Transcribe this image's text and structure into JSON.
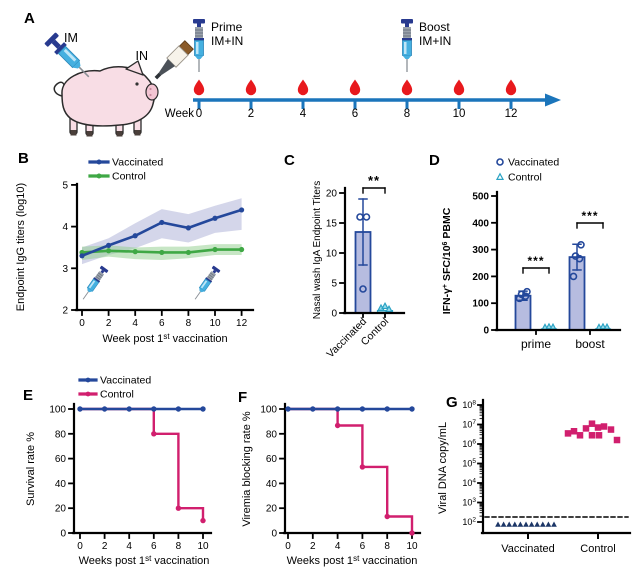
{
  "panels": {
    "a": "A",
    "b": "B",
    "c": "C",
    "d": "D",
    "e": "E",
    "f": "F",
    "g": "G"
  },
  "colors": {
    "vaccinated_blue": "#24489b",
    "control_green": "#3fa845",
    "control_magenta": "#d11f6e",
    "control_cyan_fill": "#9adceb",
    "control_cyan_stroke": "#2ba3c4",
    "bar_fill": "#b6bce0",
    "navy_points": "#1c3667",
    "band_blue": "#a9aed6",
    "band_green": "#8fce8c",
    "drop_red": "#e8191d",
    "timeline_blue": "#1b75bb",
    "axis_black": "#000000"
  },
  "panelA": {
    "label_im": "IM",
    "label_in": "IN",
    "week_word": "Week",
    "weeks": [
      0,
      2,
      4,
      6,
      8,
      10,
      12
    ],
    "prime_line1": "Prime",
    "prime_line2": "IM+IN",
    "boost_line1": "Boost",
    "boost_line2": "IM+IN"
  },
  "chart_data": {
    "B": {
      "type": "line",
      "ylabel": "Endpoint IgG titers (log10)",
      "xlabel_parts": [
        [
          "Week post 1",
          false
        ],
        [
          "st",
          true
        ],
        [
          " vaccination",
          false
        ]
      ],
      "xticks": [
        0,
        2,
        4,
        6,
        8,
        10,
        12
      ],
      "yticks": [
        2,
        3,
        4,
        5
      ],
      "ylim": [
        2,
        5
      ],
      "x": [
        0,
        2,
        4,
        6,
        8,
        10,
        12
      ],
      "series": [
        {
          "name": "Vaccinated",
          "color": "#24489b",
          "band_color": "#a9aed6",
          "values": [
            3.3,
            3.55,
            3.78,
            4.1,
            3.97,
            4.2,
            4.4
          ],
          "band_upper": [
            3.5,
            3.72,
            4.08,
            4.42,
            4.3,
            4.5,
            4.68
          ],
          "band_lower": [
            3.1,
            3.32,
            3.48,
            3.72,
            3.62,
            3.85,
            3.92
          ]
        },
        {
          "name": "Control",
          "color": "#3fa845",
          "band_color": "#8fce8c",
          "values": [
            3.38,
            3.42,
            3.4,
            3.38,
            3.38,
            3.45,
            3.45
          ],
          "band_upper": [
            3.52,
            3.55,
            3.5,
            3.52,
            3.52,
            3.58,
            3.58
          ],
          "band_lower": [
            3.2,
            3.28,
            3.22,
            3.2,
            3.24,
            3.32,
            3.32
          ]
        }
      ],
      "syringe_weeks": [
        0,
        8
      ]
    },
    "C": {
      "type": "bar",
      "ylabel": "Nasal wash IgA Endpoint Titers",
      "categories": [
        "Vaccinated",
        "Control"
      ],
      "values": [
        13.5,
        0.4
      ],
      "error_high": [
        19,
        0.9
      ],
      "error_low": [
        8,
        0
      ],
      "points": [
        [
          16,
          16,
          4
        ],
        [
          0.5,
          0.8,
          0.3
        ]
      ],
      "yticks": [
        0,
        5,
        10,
        15,
        20
      ],
      "ylim": [
        0,
        20
      ],
      "significance": "**"
    },
    "D": {
      "type": "grouped_bar",
      "ylabel_parts": [
        [
          "IFN-γ",
          false
        ],
        [
          "+",
          true
        ],
        [
          " SFC/10",
          false
        ],
        [
          "6",
          true
        ],
        [
          " PBMC",
          false
        ]
      ],
      "legend": [
        {
          "name": "Vaccinated",
          "marker": "circle"
        },
        {
          "name": "Control",
          "marker": "triangle"
        }
      ],
      "groups": [
        "prime",
        "boost"
      ],
      "vaccinated": {
        "values": [
          128,
          272
        ],
        "error_high": [
          145,
          320
        ],
        "points": [
          [
            118,
            126,
            133,
            143
          ],
          [
            200,
            266,
            276,
            318
          ]
        ]
      },
      "control": {
        "values": [
          4,
          4
        ],
        "points": [
          [
            3,
            5,
            4
          ],
          [
            3,
            5,
            4
          ]
        ]
      },
      "yticks": [
        0,
        100,
        200,
        300,
        400,
        500
      ],
      "ylim": [
        0,
        500
      ],
      "significance": [
        "***",
        "***"
      ]
    },
    "E": {
      "type": "step",
      "ylabel": "Survival rate %",
      "xlabel_parts": [
        [
          "Weeks post 1",
          false
        ],
        [
          "st",
          true
        ],
        [
          " vaccination",
          false
        ]
      ],
      "legend": [
        "Vaccinated",
        "Control"
      ],
      "xticks": [
        0,
        2,
        4,
        6,
        8,
        10
      ],
      "yticks": [
        0,
        20,
        40,
        60,
        80,
        100
      ],
      "vaccinated": {
        "x": [
          0,
          2,
          4,
          6,
          8,
          10
        ],
        "y": [
          100,
          100,
          100,
          100,
          100,
          100
        ]
      },
      "control": {
        "steps": [
          [
            0,
            100
          ],
          [
            6,
            100
          ],
          [
            6,
            80
          ],
          [
            8,
            80
          ],
          [
            8,
            20
          ],
          [
            10,
            20
          ],
          [
            10,
            10
          ]
        ],
        "points": [
          [
            6,
            80
          ],
          [
            8,
            20
          ],
          [
            10,
            10
          ]
        ]
      }
    },
    "F": {
      "type": "step",
      "ylabel": "Viremia blocking rate %",
      "xlabel_parts": [
        [
          "Weeks post 1",
          false
        ],
        [
          "st",
          true
        ],
        [
          " vaccination",
          false
        ]
      ],
      "xticks": [
        0,
        2,
        4,
        6,
        8,
        10
      ],
      "yticks": [
        0,
        20,
        40,
        60,
        80,
        100
      ],
      "vaccinated": {
        "x": [
          0,
          2,
          4,
          6,
          8,
          10
        ],
        "y": [
          100,
          100,
          100,
          100,
          100,
          100
        ]
      },
      "control": {
        "steps": [
          [
            0,
            100
          ],
          [
            4,
            100
          ],
          [
            4,
            86.7
          ],
          [
            6,
            86.7
          ],
          [
            6,
            53.3
          ],
          [
            8,
            53.3
          ],
          [
            8,
            13.3
          ],
          [
            10,
            13.3
          ],
          [
            10,
            0
          ]
        ],
        "points": [
          [
            4,
            86.7
          ],
          [
            6,
            53.3
          ],
          [
            8,
            13.3
          ],
          [
            10,
            0
          ]
        ]
      }
    },
    "G": {
      "type": "scatter",
      "ylabel": "Viral DNA copy/mL",
      "categories": [
        "Vaccinated",
        "Control"
      ],
      "y_exponent_ticks": [
        2,
        3,
        4,
        5,
        6,
        7,
        8
      ],
      "detection_limit": 250,
      "vaccinated_values": [
        200,
        200,
        200,
        200,
        200,
        200,
        200,
        200,
        200,
        200,
        200
      ],
      "control_values": [
        3500000,
        4500000,
        2800000,
        6300000,
        11000000,
        7000000,
        2800000,
        7900000,
        2800000,
        5500000,
        1600000
      ]
    }
  }
}
